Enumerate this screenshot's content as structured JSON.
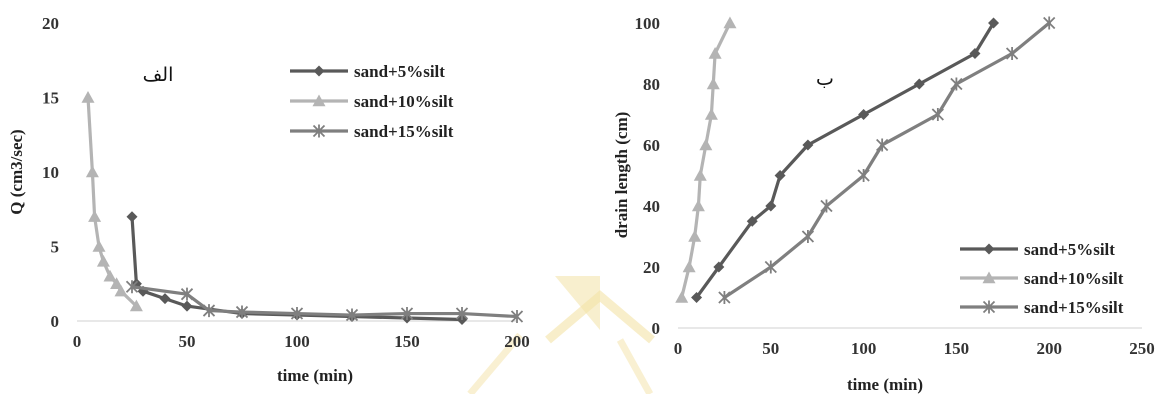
{
  "chart_data": [
    {
      "type": "line",
      "panel_label": "الف",
      "xlabel": "time (min)",
      "ylabel": "Q (cm3/sec)",
      "xlim": [
        0,
        200
      ],
      "ylim": [
        0,
        20
      ],
      "xticks": [
        "0",
        "50",
        "100",
        "150",
        "200"
      ],
      "yticks": [
        "0",
        "5",
        "10",
        "15",
        "20"
      ],
      "grid": false,
      "legend_position": "top-right",
      "series": [
        {
          "name": "sand+5%silt",
          "marker": "diamond",
          "color": "#595959",
          "points": [
            [
              25,
              7
            ],
            [
              27,
              2.5
            ],
            [
              30,
              2
            ],
            [
              40,
              1.5
            ],
            [
              50,
              1
            ],
            [
              75,
              0.5
            ],
            [
              100,
              0.4
            ],
            [
              125,
              0.3
            ],
            [
              150,
              0.2
            ],
            [
              175,
              0.1
            ]
          ]
        },
        {
          "name": "sand+10%silt",
          "marker": "triangle",
          "color": "#b4b4b4",
          "points": [
            [
              5,
              15
            ],
            [
              7,
              10
            ],
            [
              8,
              7
            ],
            [
              10,
              5
            ],
            [
              12,
              4
            ],
            [
              15,
              3
            ],
            [
              18,
              2.5
            ],
            [
              20,
              2
            ],
            [
              27,
              1
            ]
          ]
        },
        {
          "name": "sand+15%silt",
          "marker": "star",
          "color": "#7f7f7f",
          "points": [
            [
              25,
              2.3
            ],
            [
              50,
              1.8
            ],
            [
              60,
              0.7
            ],
            [
              75,
              0.6
            ],
            [
              100,
              0.5
            ],
            [
              125,
              0.4
            ],
            [
              150,
              0.5
            ],
            [
              175,
              0.5
            ],
            [
              200,
              0.3
            ]
          ]
        }
      ]
    },
    {
      "type": "line",
      "panel_label": "ب",
      "xlabel": "time (min)",
      "ylabel": "drain length (cm)",
      "xlim": [
        0,
        250
      ],
      "ylim": [
        0,
        100
      ],
      "xticks": [
        "0",
        "50",
        "100",
        "150",
        "200",
        "250"
      ],
      "yticks": [
        "0",
        "20",
        "40",
        "60",
        "80",
        "100"
      ],
      "grid": false,
      "legend_position": "bottom-right",
      "series": [
        {
          "name": "sand+5%silt",
          "marker": "diamond",
          "color": "#595959",
          "points": [
            [
              10,
              10
            ],
            [
              22,
              20
            ],
            [
              40,
              35
            ],
            [
              50,
              40
            ],
            [
              55,
              50
            ],
            [
              70,
              60
            ],
            [
              100,
              70
            ],
            [
              130,
              80
            ],
            [
              160,
              90
            ],
            [
              170,
              100
            ]
          ]
        },
        {
          "name": "sand+10%silt",
          "marker": "triangle",
          "color": "#b4b4b4",
          "points": [
            [
              2,
              10
            ],
            [
              6,
              20
            ],
            [
              9,
              30
            ],
            [
              11,
              40
            ],
            [
              12,
              50
            ],
            [
              15,
              60
            ],
            [
              18,
              70
            ],
            [
              19,
              80
            ],
            [
              20,
              90
            ],
            [
              28,
              100
            ]
          ]
        },
        {
          "name": "sand+15%silt",
          "marker": "star",
          "color": "#7f7f7f",
          "points": [
            [
              25,
              10
            ],
            [
              50,
              20
            ],
            [
              70,
              30
            ],
            [
              80,
              40
            ],
            [
              100,
              50
            ],
            [
              110,
              60
            ],
            [
              140,
              70
            ],
            [
              150,
              80
            ],
            [
              180,
              90
            ],
            [
              200,
              100
            ]
          ]
        }
      ]
    }
  ],
  "colors": {
    "axis": "#d9d9d9",
    "watermark": "#f3e2a6"
  }
}
